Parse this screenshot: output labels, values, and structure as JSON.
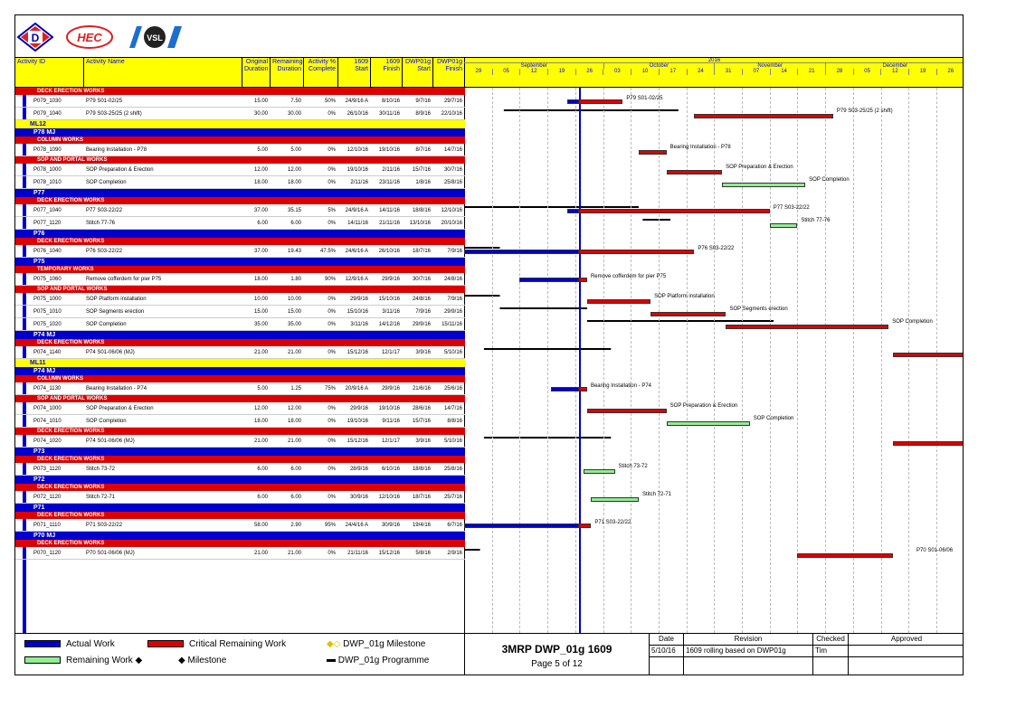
{
  "header": {
    "activity_id": "Activity ID",
    "activity_name": "Activity Name",
    "original_duration": "Original Duration",
    "remaining_duration": "Remaining Duration",
    "activity_pct": "Activity % Complete",
    "start_1609": "1609 Start",
    "finish_1609": "1609 Finish",
    "dwp_start": "DWP01g Start",
    "dwp_finish": "DWP01g Finish",
    "year": "2016",
    "months": [
      "September",
      "October",
      "November",
      "December"
    ],
    "weeks": [
      "29",
      "05",
      "12",
      "19",
      "26",
      "03",
      "10",
      "17",
      "24",
      "31",
      "07",
      "14",
      "21",
      "28",
      "05",
      "12",
      "19",
      "26"
    ]
  },
  "rows": [
    {
      "kind": "grp",
      "label": "DECK ERECTION WORKS"
    },
    {
      "kind": "act",
      "id": "P079_1030",
      "name": "P79 S01-02/25",
      "od": "15.00",
      "rd": "7.50",
      "pct": "50%",
      "s": "24/9/16 A",
      "f": "8/10/16",
      "ds": "9/7/16",
      "df": "29/7/16"
    },
    {
      "kind": "act",
      "id": "P079_1040",
      "name": "P79 S03-25/25 (2 shift)",
      "od": "30.00",
      "rd": "30.00",
      "pct": "0%",
      "s": "26/10/16",
      "f": "30/11/16",
      "ds": "8/9/16",
      "df": "22/10/16"
    },
    {
      "kind": "ml",
      "label": "ML12"
    },
    {
      "kind": "loc",
      "label": "P78 MJ"
    },
    {
      "kind": "grp",
      "label": "COLUMN WORKS"
    },
    {
      "kind": "act",
      "id": "P078_1090",
      "name": "Bearing Installation - P78",
      "od": "5.00",
      "rd": "5.00",
      "pct": "0%",
      "s": "12/10/16",
      "f": "19/10/16",
      "ds": "8/7/16",
      "df": "14/7/16"
    },
    {
      "kind": "grp",
      "label": "SOP AND PORTAL WORKS"
    },
    {
      "kind": "act",
      "id": "P078_1000",
      "name": "SOP Preparation & Erection",
      "od": "12.00",
      "rd": "12.00",
      "pct": "0%",
      "s": "19/10/16",
      "f": "2/11/16",
      "ds": "15/7/16",
      "df": "30/7/16"
    },
    {
      "kind": "act",
      "id": "P078_1010",
      "name": "SOP Completion",
      "od": "18.00",
      "rd": "18.00",
      "pct": "0%",
      "s": "2/11/16",
      "f": "23/11/16",
      "ds": "1/8/16",
      "df": "25/8/16"
    },
    {
      "kind": "loc",
      "label": "P77"
    },
    {
      "kind": "grp",
      "label": "DECK ERECTION WORKS"
    },
    {
      "kind": "act",
      "id": "P077_1040",
      "name": "P77 S03-22/22",
      "od": "37.00",
      "rd": "35.15",
      "pct": "5%",
      "s": "24/9/16 A",
      "f": "14/11/16",
      "ds": "18/8/16",
      "df": "12/10/16"
    },
    {
      "kind": "act",
      "id": "P077_1120",
      "name": "Stitch 77-76",
      "od": "6.00",
      "rd": "6.00",
      "pct": "0%",
      "s": "14/11/16",
      "f": "21/11/16",
      "ds": "13/10/16",
      "df": "20/10/16"
    },
    {
      "kind": "loc",
      "label": "P76"
    },
    {
      "kind": "grp",
      "label": "DECK ERECTION WORKS"
    },
    {
      "kind": "act",
      "id": "P076_1040",
      "name": "P76 S03-22/22",
      "od": "37.00",
      "rd": "19.43",
      "pct": "47.5%",
      "s": "24/6/16 A",
      "f": "26/10/16",
      "ds": "18/7/16",
      "df": "7/9/16"
    },
    {
      "kind": "loc",
      "label": "P75"
    },
    {
      "kind": "grp",
      "label": "TEMPORARY WORKS"
    },
    {
      "kind": "act",
      "id": "P075_1060",
      "name": "Remove cofferdem for pier P75",
      "od": "18.00",
      "rd": "1.80",
      "pct": "90%",
      "s": "12/9/16 A",
      "f": "29/9/16",
      "ds": "30/7/16",
      "df": "24/8/16"
    },
    {
      "kind": "grp",
      "label": "SOP AND PORTAL WORKS"
    },
    {
      "kind": "act",
      "id": "P075_1000",
      "name": "SOP Platform installation",
      "od": "10.00",
      "rd": "10.00",
      "pct": "0%",
      "s": "29/9/16",
      "f": "15/10/16",
      "ds": "24/8/16",
      "df": "7/9/16"
    },
    {
      "kind": "act",
      "id": "P075_1010",
      "name": "SOP Segments erection",
      "od": "15.00",
      "rd": "15.00",
      "pct": "0%",
      "s": "15/10/16",
      "f": "3/11/16",
      "ds": "7/9/16",
      "df": "29/9/16"
    },
    {
      "kind": "act",
      "id": "P075_1020",
      "name": "SOP Completion",
      "od": "35.00",
      "rd": "35.00",
      "pct": "0%",
      "s": "3/11/16",
      "f": "14/12/16",
      "ds": "29/9/16",
      "df": "15/11/16"
    },
    {
      "kind": "loc",
      "label": "P74 MJ"
    },
    {
      "kind": "grp",
      "label": "DECK ERECTION WORKS"
    },
    {
      "kind": "act",
      "id": "P074_1140",
      "name": "P74 S01-06/06 (MJ)",
      "od": "21.00",
      "rd": "21.00",
      "pct": "0%",
      "s": "15/12/16",
      "f": "12/1/17",
      "ds": "3/9/16",
      "df": "5/10/16"
    },
    {
      "kind": "ml",
      "label": "ML11"
    },
    {
      "kind": "loc",
      "label": "P74 MJ"
    },
    {
      "kind": "grp",
      "label": "COLUMN WORKS"
    },
    {
      "kind": "act",
      "id": "P074_1130",
      "name": "Bearing Installation - P74",
      "od": "5.00",
      "rd": "1.25",
      "pct": "75%",
      "s": "20/9/16 A",
      "f": "29/9/16",
      "ds": "21/6/16",
      "df": "25/6/16"
    },
    {
      "kind": "grp",
      "label": "SOP AND PORTAL WORKS"
    },
    {
      "kind": "act",
      "id": "P074_1000",
      "name": "SOP Preparation & Erection",
      "od": "12.00",
      "rd": "12.00",
      "pct": "0%",
      "s": "29/9/16",
      "f": "19/10/16",
      "ds": "28/6/16",
      "df": "14/7/16"
    },
    {
      "kind": "act",
      "id": "P074_1010",
      "name": "SOP Completion",
      "od": "18.00",
      "rd": "18.00",
      "pct": "0%",
      "s": "19/10/16",
      "f": "9/11/16",
      "ds": "15/7/16",
      "df": "8/8/16"
    },
    {
      "kind": "grp",
      "label": "DECK ERECTION WORKS"
    },
    {
      "kind": "act",
      "id": "P074_1020",
      "name": "P74 S01-06/06 (MJ)",
      "od": "21.00",
      "rd": "21.00",
      "pct": "0%",
      "s": "15/12/16",
      "f": "12/1/17",
      "ds": "3/9/16",
      "df": "5/10/16"
    },
    {
      "kind": "loc",
      "label": "P73"
    },
    {
      "kind": "grp",
      "label": "DECK ERECTION WORKS"
    },
    {
      "kind": "act",
      "id": "P073_1120",
      "name": "Stitch 73-72",
      "od": "6.00",
      "rd": "6.00",
      "pct": "0%",
      "s": "28/9/16",
      "f": "6/10/16",
      "ds": "18/8/16",
      "df": "25/8/16"
    },
    {
      "kind": "loc",
      "label": "P72"
    },
    {
      "kind": "grp",
      "label": "DECK ERECTION WORKS"
    },
    {
      "kind": "act",
      "id": "P072_1120",
      "name": "Stitch 72-71",
      "od": "6.00",
      "rd": "6.00",
      "pct": "0%",
      "s": "30/9/16",
      "f": "12/10/16",
      "ds": "18/7/16",
      "df": "25/7/16"
    },
    {
      "kind": "loc",
      "label": "P71"
    },
    {
      "kind": "grp",
      "label": "DECK ERECTION WORKS"
    },
    {
      "kind": "act",
      "id": "P071_1110",
      "name": "P71 S03-22/22",
      "od": "58.00",
      "rd": "2.90",
      "pct": "95%",
      "s": "24/4/16 A",
      "f": "30/9/16",
      "ds": "19/4/16",
      "df": "6/7/16"
    },
    {
      "kind": "loc",
      "label": "P70 MJ"
    },
    {
      "kind": "grp",
      "label": "DECK ERECTION WORKS"
    },
    {
      "kind": "act",
      "id": "P070_1120",
      "name": "P70 S01-06/06 (MJ)",
      "od": "21.00",
      "rd": "21.00",
      "pct": "0%",
      "s": "21/11/16",
      "f": "15/12/16",
      "ds": "5/8/16",
      "df": "2/9/16"
    }
  ],
  "gantt_labels": {
    "P079_1030": "P79 S01-02/25",
    "P079_1040": "P79 S03-25/25 (2 shift)",
    "P078_1090": "Bearing Installation - P78",
    "P078_1000": "SOP Preparation & Erection",
    "P078_1010": "SOP Completion",
    "P077_1040": "P77 S03-22/22",
    "P077_1120": "Stitch 77-76",
    "P076_1040": "P76 S03-22/22",
    "P075_1060": "Remove cofferdem for pier P75",
    "P075_1000": "SOP Platform installation",
    "P075_1010": "SOP Segments erection",
    "P075_1020": "SOP Completion",
    "P074_1130": "Bearing Installation - P74",
    "P074_1000": "SOP Preparation & Erection",
    "P074_1010": "SOP Completion",
    "P073_1120": "Stitch 73-72",
    "P072_1120": "Stitch 72-71",
    "P071_1110": "P71 S03-22/22",
    "P070_1120": "P70 S01-06/06"
  },
  "legend": {
    "actual_work": "Actual Work",
    "critical_remaining": "Critical Remaining Work",
    "dwp_milestone": "DWP_01g Milestone",
    "remaining_work": "Remaining Work",
    "milestone": "Milestone",
    "dwp_programme": "DWP_01g Programme"
  },
  "title_block": {
    "title": "3MRP DWP_01g 1609",
    "page": "Page 5 of 12"
  },
  "revision": {
    "h_date": "Date",
    "h_revision": "Revision",
    "h_checked": "Checked",
    "h_approved": "Approved",
    "date": "5/10/16",
    "revision": "1609 rolling based on DWP01g",
    "checked": "Tim",
    "approved": ""
  },
  "logos": {
    "hec": "HEC",
    "vsl": "VSL",
    "d": "D"
  },
  "colors": {
    "actual": "#0000cc",
    "critical": "#dd0000",
    "remaining": "#90ee90",
    "dwp": "#000000",
    "header": "#ffff00"
  }
}
